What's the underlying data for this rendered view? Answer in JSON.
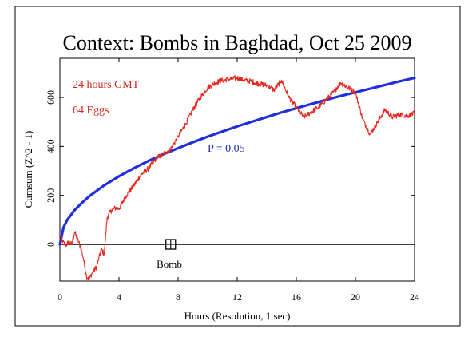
{
  "chart_data": {
    "type": "line",
    "title": "Context: Bombs in Baghdad, Oct 25 2009",
    "xlabel": "Hours (Resolution, 1 sec)",
    "ylabel": "Cumsum (Z^2 - 1)",
    "xlim": [
      0,
      24
    ],
    "ylim": [
      -150,
      760
    ],
    "x_ticks": [
      0,
      4,
      8,
      12,
      16,
      20,
      24
    ],
    "y_ticks": [
      0,
      200,
      400,
      600
    ],
    "annotations": {
      "period": "24 hours GMT",
      "eggs": "64 Eggs",
      "significance": "P = 0.05",
      "event": "Bomb"
    },
    "event_marker": {
      "x": 7.5,
      "y": 0
    },
    "colors": {
      "cumsum": "#e8251c",
      "significance": "#1f2fe0",
      "baseline": "#000000",
      "annotation_red": "#d42a1f",
      "annotation_blue": "#1f2fb0"
    },
    "series": [
      {
        "name": "",
        "role": "cumsum",
        "x": [
          0,
          0.2,
          0.4,
          0.6,
          0.8,
          1.0,
          1.2,
          1.4,
          1.6,
          1.8,
          2.0,
          2.2,
          2.5,
          2.8,
          3.0,
          3.2,
          3.5,
          3.8,
          4.0,
          4.5,
          5.0,
          5.5,
          6.0,
          6.5,
          7.0,
          7.5,
          8.0,
          8.5,
          9.0,
          9.5,
          10.0,
          10.5,
          11.0,
          11.5,
          12.0,
          12.5,
          13.0,
          13.5,
          14.0,
          14.5,
          15.0,
          15.5,
          16.0,
          16.5,
          17.0,
          17.5,
          18.0,
          18.5,
          19.0,
          19.5,
          20.0,
          20.5,
          21.0,
          21.5,
          22.0,
          22.5,
          23.0,
          23.5,
          24.0
        ],
        "values": [
          40,
          10,
          -5,
          10,
          0,
          50,
          20,
          -10,
          -60,
          -130,
          -140,
          -115,
          -90,
          -20,
          -40,
          110,
          140,
          150,
          145,
          200,
          240,
          285,
          310,
          350,
          370,
          390,
          440,
          490,
          550,
          600,
          640,
          660,
          670,
          675,
          680,
          670,
          665,
          655,
          650,
          630,
          670,
          600,
          560,
          520,
          540,
          560,
          590,
          620,
          660,
          640,
          620,
          510,
          450,
          500,
          550,
          520,
          530,
          525,
          535
        ]
      },
      {
        "name": "",
        "role": "significance",
        "x": [
          0,
          0.25,
          0.5,
          1,
          1.5,
          2,
          3,
          4,
          5,
          6,
          7,
          8,
          9,
          10,
          11,
          12,
          13,
          14,
          15,
          16,
          17,
          18,
          19,
          20,
          21,
          22,
          23,
          24
        ],
        "values": [
          0,
          70,
          100,
          140,
          170,
          197,
          241,
          278,
          311,
          341,
          368,
          393,
          417,
          440,
          461,
          482,
          501,
          520,
          539,
          556,
          573,
          590,
          606,
          621,
          636,
          651,
          666,
          680
        ]
      }
    ]
  }
}
